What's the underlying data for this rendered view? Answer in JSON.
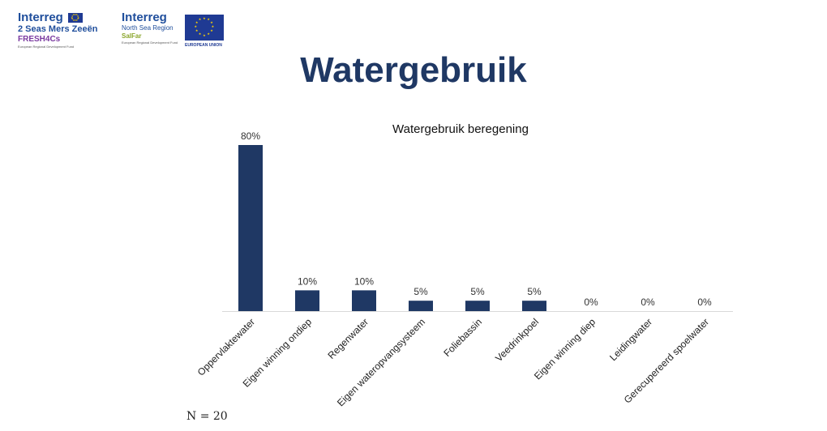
{
  "logos": {
    "left": {
      "brand": "Interreg",
      "line1": "2 Seas Mers Zeeën",
      "line2": "FRESH4Cs",
      "tagline": "European Regional Development Fund"
    },
    "right": {
      "brand": "Interreg",
      "line1": "North Sea Region",
      "line2": "SalFar",
      "tagline": "European Regional Development Fund",
      "union": "EUROPEAN UNION"
    }
  },
  "slide": {
    "title": "Watergebruik",
    "footnote": "N = 20"
  },
  "colors": {
    "bar": "#1f3864",
    "title": "#1f3864"
  },
  "chart_data": {
    "type": "bar",
    "title": "Watergebruik beregening",
    "categories": [
      "Oppervlaktewater",
      "Eigen winning ondiep",
      "Regenwater",
      "Eigen wateropvangsysteem",
      "Foliebassin",
      "Veedrinkpoel",
      "Eigen winning diep",
      "Leidingwater",
      "Gerecupereerd spoelwater"
    ],
    "values": [
      80,
      10,
      10,
      5,
      5,
      5,
      0,
      0,
      0
    ],
    "data_labels": [
      "80%",
      "10%",
      "10%",
      "5%",
      "5%",
      "5%",
      "0%",
      "0%",
      "0%"
    ],
    "ylim": [
      0,
      80
    ],
    "grid": false,
    "legend": false
  }
}
